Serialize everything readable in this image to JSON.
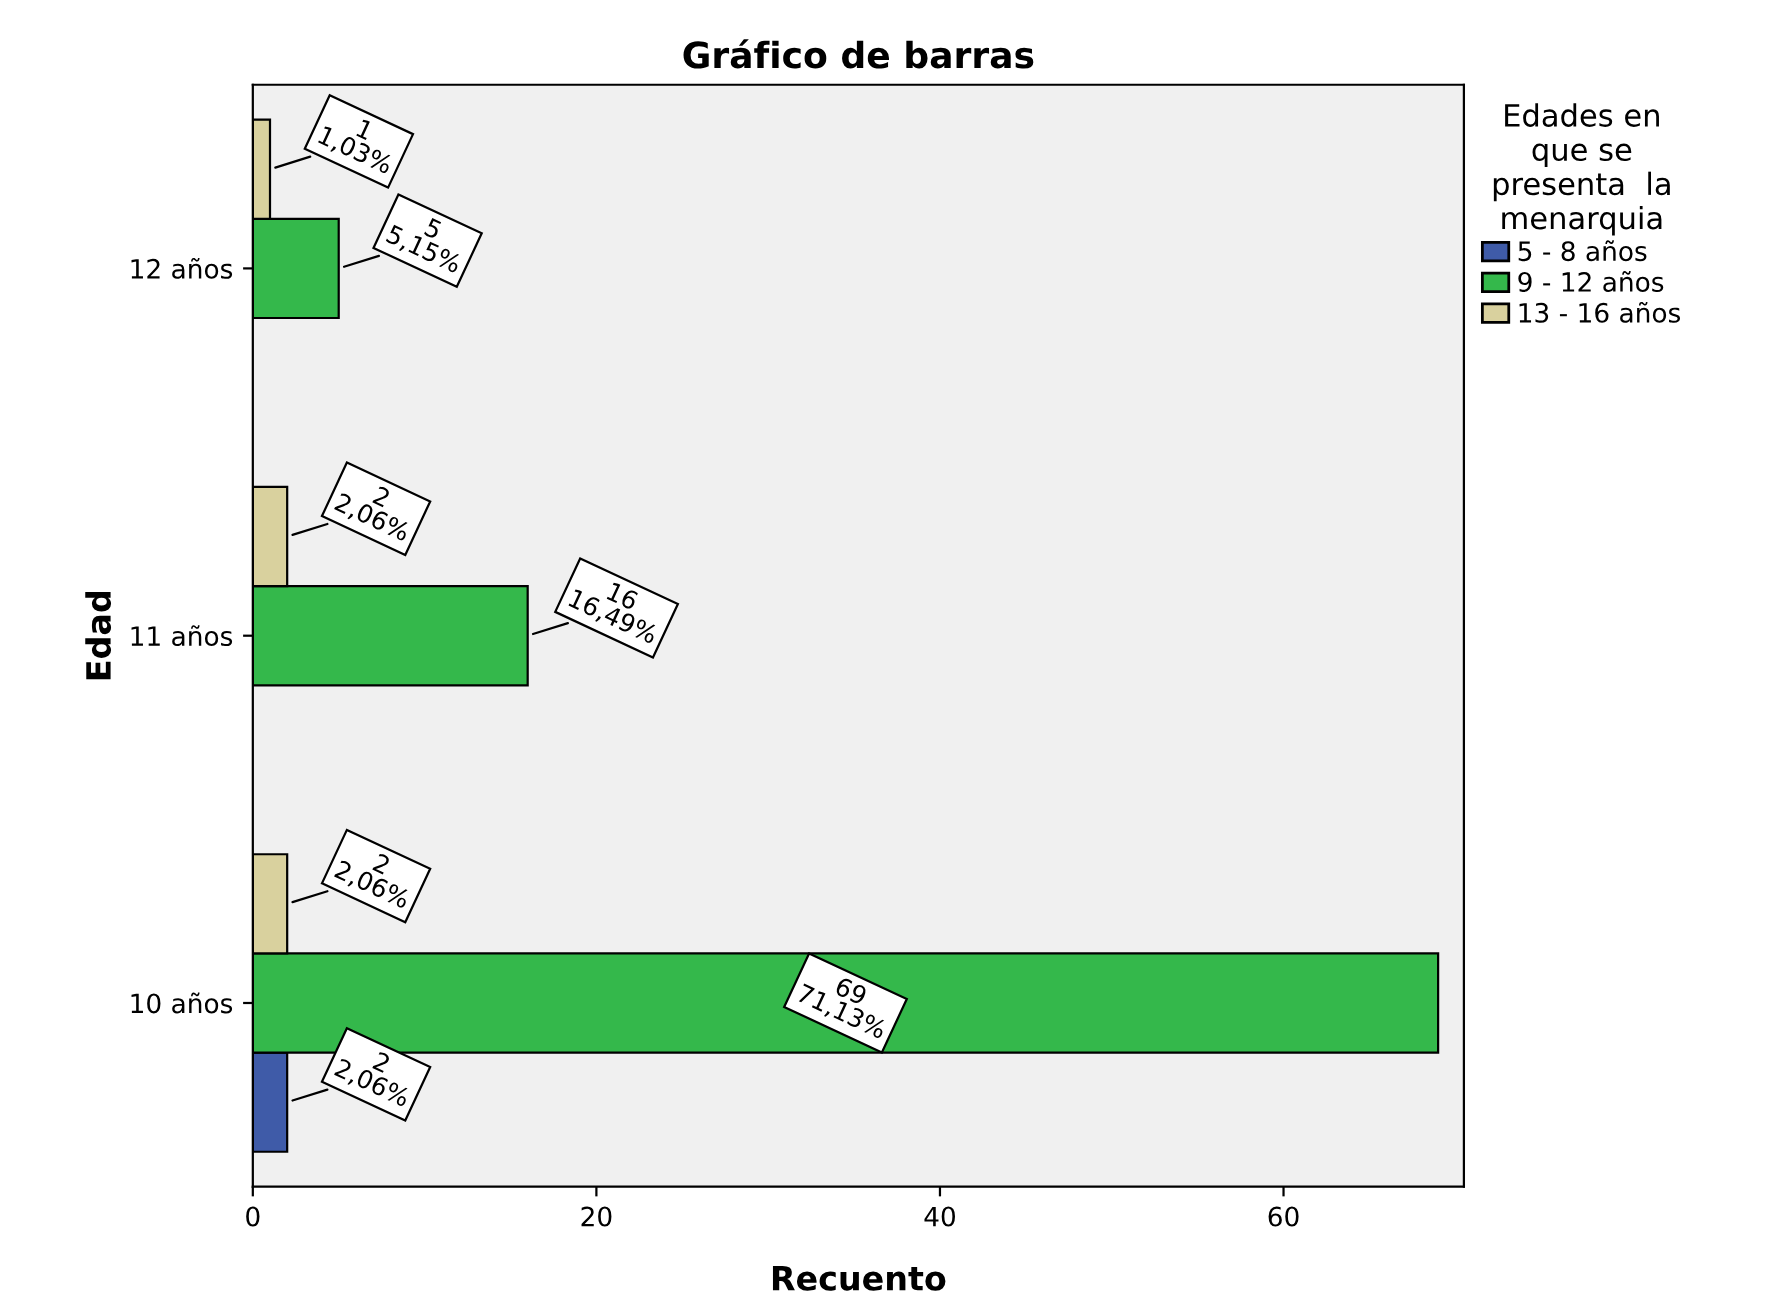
{
  "chart_data": {
    "type": "bar",
    "orientation": "horizontal",
    "title": "Gráfico de barras",
    "xlabel": "Recuento",
    "ylabel": "Edad",
    "legend_title": "Edades en\nque se\npresenta  la\nmenarquia",
    "legend": "right",
    "grid": false,
    "categories": [
      "12 años",
      "11 años",
      "10 años"
    ],
    "xlim": [
      0,
      70.5
    ],
    "xticks": [
      0,
      20,
      40,
      60
    ],
    "series": [
      {
        "name": "5 - 8 años",
        "color": "#3f5ba8",
        "values": [
          null,
          null,
          2
        ],
        "value_labels": [
          null,
          null,
          "2\n2,06%"
        ]
      },
      {
        "name": "9 - 12 años",
        "color": "#34b84b",
        "values": [
          5,
          16,
          69
        ],
        "value_labels": [
          "5\n5,15%",
          "16\n16,49%",
          "69\n71,13%"
        ]
      },
      {
        "name": "13 - 16 años",
        "color": "#d9d19e",
        "values": [
          1,
          2,
          2
        ],
        "value_labels": [
          "1\n1,03%",
          "2\n2,06%",
          "2\n2,06%"
        ]
      }
    ]
  }
}
